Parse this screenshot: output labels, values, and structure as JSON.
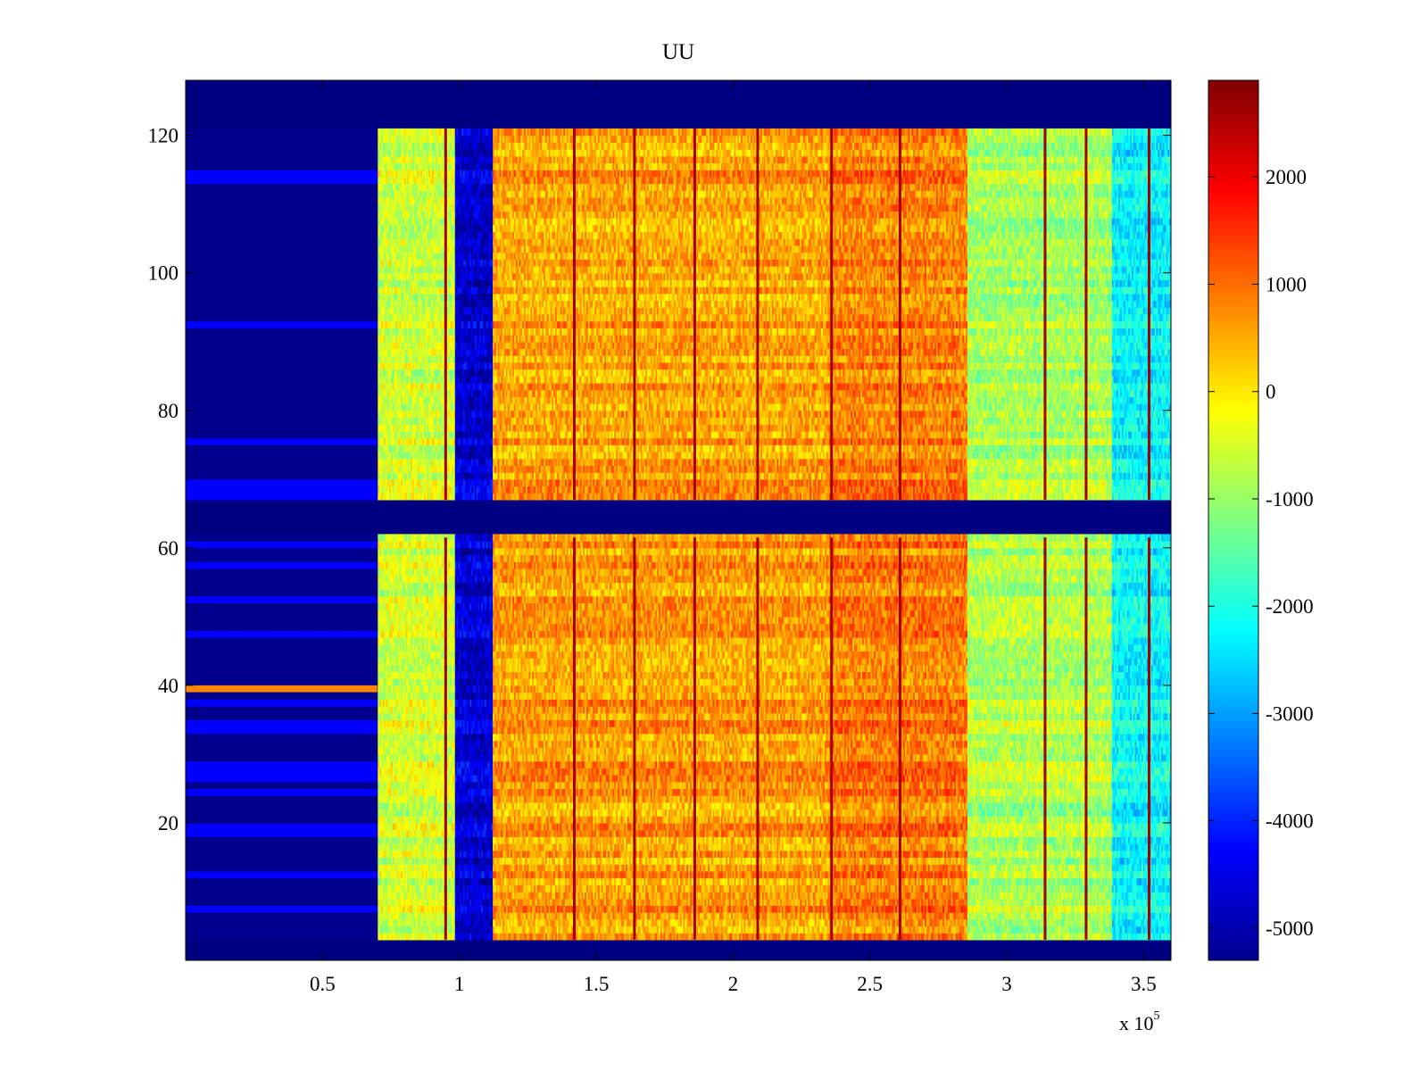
{
  "chart_data": {
    "type": "heatmap",
    "title": "UU",
    "xlabel": "",
    "ylabel": "",
    "x_multiplier_label": "x 10",
    "x_multiplier_exponent": "5",
    "xlim": [
      0,
      3.6
    ],
    "ylim": [
      0,
      128
    ],
    "x_ticks": [
      {
        "value": 0.5,
        "label": "0.5"
      },
      {
        "value": 1,
        "label": "1"
      },
      {
        "value": 1.5,
        "label": "1.5"
      },
      {
        "value": 2,
        "label": "2"
      },
      {
        "value": 2.5,
        "label": "2.5"
      },
      {
        "value": 3,
        "label": "3"
      },
      {
        "value": 3.5,
        "label": "3.5"
      }
    ],
    "y_ticks": [
      {
        "value": 20,
        "label": "20"
      },
      {
        "value": 40,
        "label": "40"
      },
      {
        "value": 60,
        "label": "60"
      },
      {
        "value": 80,
        "label": "80"
      },
      {
        "value": 100,
        "label": "100"
      },
      {
        "value": 120,
        "label": "120"
      }
    ],
    "colorbar": {
      "colormap": "jet",
      "range": [
        -5300,
        2900
      ],
      "ticks": [
        {
          "value": 2000,
          "label": "2000"
        },
        {
          "value": 1000,
          "label": "1000"
        },
        {
          "value": 0,
          "label": "0"
        },
        {
          "value": -1000,
          "label": "-1000"
        },
        {
          "value": -2000,
          "label": "-2000"
        },
        {
          "value": -3000,
          "label": "-3000"
        },
        {
          "value": -4000,
          "label": "-4000"
        },
        {
          "value": -5000,
          "label": "-5000"
        }
      ]
    },
    "masked_row_bands": [
      [
        121,
        128
      ],
      [
        61.5,
        67
      ],
      [
        0,
        3
      ]
    ],
    "column_segments": [
      {
        "x0": 0,
        "x1": 0.7,
        "value": -5200
      },
      {
        "x0": 0.7,
        "x1": 0.98,
        "value": -500
      },
      {
        "x0": 0.98,
        "x1": 1.12,
        "value": -4600
      },
      {
        "x0": 1.12,
        "x1": 2.35,
        "value": 600
      },
      {
        "x0": 2.35,
        "x1": 2.85,
        "value": 900
      },
      {
        "x0": 2.85,
        "x1": 3.38,
        "value": -800
      },
      {
        "x0": 3.38,
        "x1": 3.6,
        "value": -2200
      }
    ],
    "vertical_streaks": [
      0.95,
      1.42,
      1.64,
      1.86,
      2.09,
      2.36,
      2.61,
      3.14,
      3.29,
      3.52
    ],
    "highlight_rows": [
      {
        "y": 39,
        "x0": 0,
        "x1": 0.7,
        "value": 800
      }
    ]
  }
}
